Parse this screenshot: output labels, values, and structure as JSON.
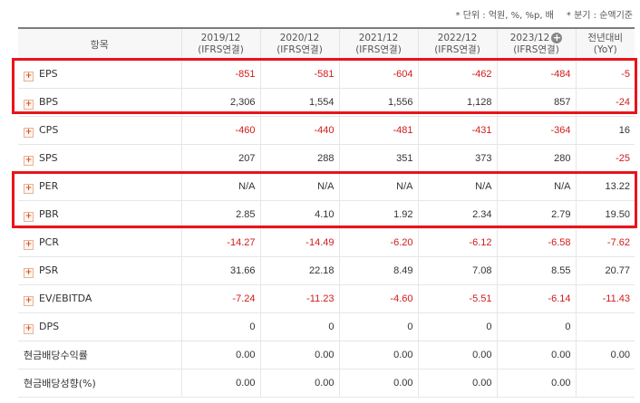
{
  "notes": {
    "unit": "* 단위 : 억원, %, %p, 배",
    "period": "* 분기 : 순액기준"
  },
  "columns": [
    {
      "line1": "항목",
      "line2": ""
    },
    {
      "line1": "2019/12",
      "line2": "(IFRS연결)"
    },
    {
      "line1": "2020/12",
      "line2": "(IFRS연결)"
    },
    {
      "line1": "2021/12",
      "line2": "(IFRS연결)"
    },
    {
      "line1": "2022/12",
      "line2": "(IFRS연결)"
    },
    {
      "line1": "2023/12",
      "line2": "(IFRS연결)"
    },
    {
      "line1": "전년대비",
      "line2": "(YoY)"
    }
  ],
  "rows": [
    {
      "label": "EPS",
      "values": [
        "-851",
        "-581",
        "-604",
        "-462",
        "-484",
        "-5"
      ]
    },
    {
      "label": "BPS",
      "values": [
        "2,306",
        "1,554",
        "1,556",
        "1,128",
        "857",
        "-24"
      ]
    },
    {
      "label": "CPS",
      "values": [
        "-460",
        "-440",
        "-481",
        "-431",
        "-364",
        "16"
      ]
    },
    {
      "label": "SPS",
      "values": [
        "207",
        "288",
        "351",
        "373",
        "280",
        "-25"
      ]
    },
    {
      "label": "PER",
      "values": [
        "N/A",
        "N/A",
        "N/A",
        "N/A",
        "N/A",
        "13.22"
      ]
    },
    {
      "label": "PBR",
      "values": [
        "2.85",
        "4.10",
        "1.92",
        "2.34",
        "2.79",
        "19.50"
      ]
    },
    {
      "label": "PCR",
      "values": [
        "-14.27",
        "-14.49",
        "-6.20",
        "-6.12",
        "-6.58",
        "-7.62"
      ]
    },
    {
      "label": "PSR",
      "values": [
        "31.66",
        "22.18",
        "8.49",
        "7.08",
        "8.55",
        "20.77"
      ]
    },
    {
      "label": "EV/EBITDA",
      "values": [
        "-7.24",
        "-11.23",
        "-4.60",
        "-5.51",
        "-6.14",
        "-11.43"
      ]
    },
    {
      "label": "DPS",
      "values": [
        "0",
        "0",
        "0",
        "0",
        "0",
        ""
      ]
    },
    {
      "label": "현금배당수익률",
      "values": [
        "0.00",
        "0.00",
        "0.00",
        "0.00",
        "0.00",
        "0.00"
      ]
    },
    {
      "label": "현금배당성향(%)",
      "values": [
        "0.00",
        "0.00",
        "0.00",
        "0.00",
        "0.00",
        ""
      ]
    }
  ],
  "colors": {
    "negative": "#d11b1b",
    "highlight": "#e8141c"
  }
}
